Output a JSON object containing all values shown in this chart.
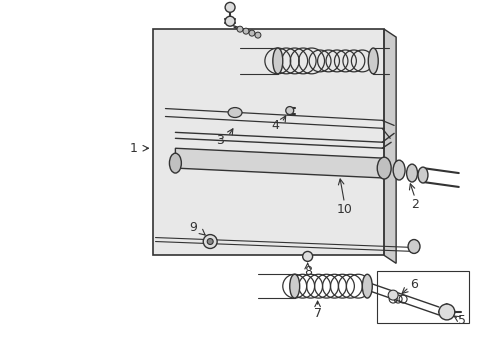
{
  "background_color": "#ffffff",
  "fig_width": 4.89,
  "fig_height": 3.6,
  "dpi": 100,
  "line_color": "#333333",
  "panel_fill": "#e8e8e8",
  "panel_edge": "#333333"
}
